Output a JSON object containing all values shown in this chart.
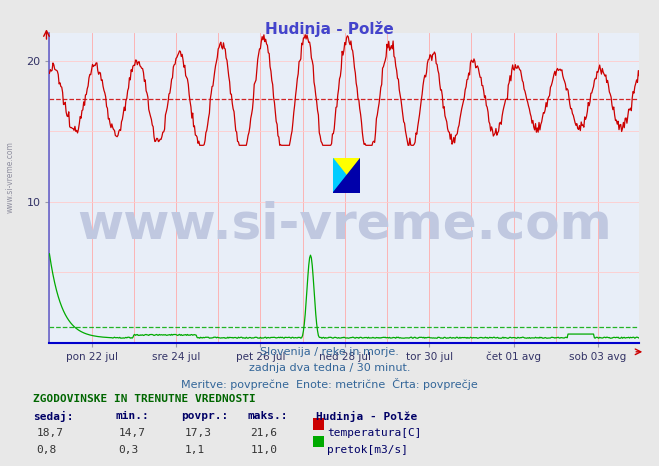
{
  "title": "Hudinja - Polže",
  "title_color": "#4444cc",
  "background_color": "#e8e8e8",
  "plot_bg_color": "#e8eef8",
  "grid_color_v": "#ffaaaa",
  "grid_color_h": "#ffcccc",
  "avg_line_color_temp": "#cc0000",
  "avg_line_color_pretok": "#00aa00",
  "x_axis_color": "#0000cc",
  "y_axis_color": "#6666cc",
  "ylim": [
    0,
    22
  ],
  "yticks": [
    10,
    20
  ],
  "xlabel_ticks": [
    "pon 22 jul",
    "sre 24 jul",
    "pet 26 jul",
    "ned 28 jul",
    "tor 30 jul",
    "čet 01 avg",
    "sob 03 avg"
  ],
  "n_points": 672,
  "temp_color": "#cc0000",
  "pretok_color": "#00aa00",
  "temp_avg_line": 17.3,
  "pretok_avg_line": 1.1,
  "subtitle1": "Slovenija / reke in morje.",
  "subtitle2": "zadnja dva tedna / 30 minut.",
  "subtitle3": "Meritve: povprečne  Enote: metrične  Črta: povprečje",
  "table_header": "ZGODOVINSKE IN TRENUTNE VREDNOSTI",
  "col_headers": [
    "sedaj:",
    "min.:",
    "povpr.:",
    "maks.:",
    "Hudinja - Polže"
  ],
  "row1": [
    "18,7",
    "14,7",
    "17,3",
    "21,6",
    "temperatura[C]"
  ],
  "row2": [
    "0,8",
    "0,3",
    "1,1",
    "11,0",
    "pretok[m3/s]"
  ],
  "watermark_text": "www.si-vreme.com",
  "watermark_color": "#c0c8e0",
  "watermark_fontsize": 36,
  "sidebar_text": "www.si-vreme.com",
  "sidebar_color": "#9090a0"
}
